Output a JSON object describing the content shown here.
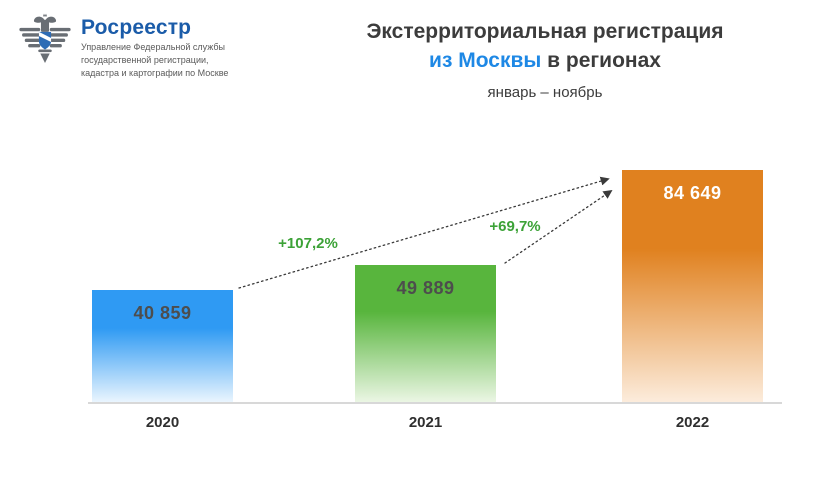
{
  "logo": {
    "brand": "Росреестр",
    "department": [
      "Управление Федеральной службы",
      "государственной регистрации,",
      "кадастра и картографии по Москве"
    ]
  },
  "header": {
    "title": "Экстерриториальная регистрация",
    "title_accent": "из Москвы",
    "title_rest": "в регионах",
    "period": "январь – ноябрь"
  },
  "chart_data": {
    "type": "bar",
    "title": "Экстерриториальная регистрация из Москвы в регионах",
    "subtitle": "январь – ноябрь",
    "categories": [
      "2020",
      "2021",
      "2022"
    ],
    "values": [
      40859,
      49889,
      84649
    ],
    "value_labels": [
      "40 859",
      "49 889",
      "84 649"
    ],
    "bars": [
      {
        "year": "2020",
        "value": 40859,
        "label": "40 859",
        "color_top": "#2f9af3",
        "color_bottom": "#eaf5fe",
        "label_color": "#4d4d4d"
      },
      {
        "year": "2021",
        "value": 49889,
        "label": "49 889",
        "color_top": "#58b53d",
        "color_bottom": "#ebf6e4",
        "label_color": "#4d4d4d"
      },
      {
        "year": "2022",
        "value": 84649,
        "label": "84 649",
        "color_top": "#e0811f",
        "color_bottom": "#fcecdc",
        "label_color": "#ffffff"
      }
    ],
    "annotations": [
      {
        "label": "+107,2%",
        "from": "2020",
        "to": "2022",
        "color": "#3ca237"
      },
      {
        "label": "+69,7%",
        "from": "2021",
        "to": "2022",
        "color": "#3ca237"
      }
    ],
    "ylim": [
      0,
      90000
    ],
    "grid": false,
    "legend": false,
    "accent_colors": {
      "brand_blue": "#1b5ca9",
      "title_blue": "#1e88e5",
      "growth_green": "#3ca237"
    }
  }
}
